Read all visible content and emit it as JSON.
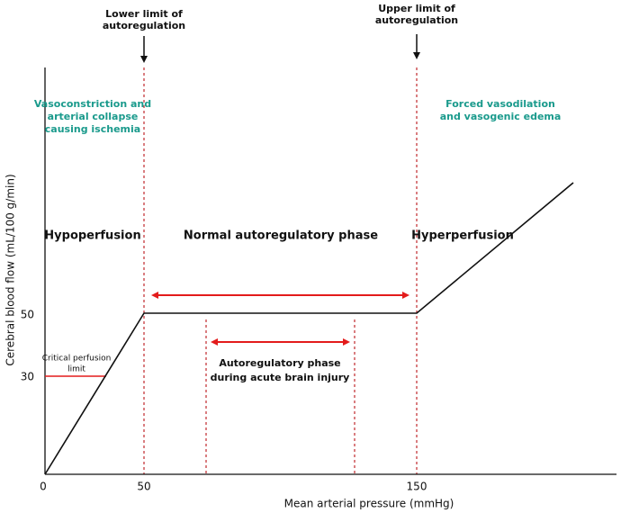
{
  "annotations": {
    "lower_limit": [
      "Lower limit of",
      "autoregulation"
    ],
    "upper_limit": [
      "Upper limit of",
      "autoregulation"
    ],
    "left_note": [
      "Vasoconstriction and",
      "arterial collapse",
      "causing ischemia"
    ],
    "right_note": [
      "Forced vasodilation",
      "and vasogenic edema"
    ],
    "phases": [
      "Hypoperfusion",
      "Normal autoregulatory phase",
      "Hyperperfusion"
    ],
    "injury_phase": [
      "Autoregulatory phase",
      "during acute brain injury"
    ],
    "critical": [
      "Critical perfusion",
      "limit"
    ]
  },
  "axes": {
    "x_label": "Mean arterial pressure (mmHg)",
    "y_label": "Cerebral blood flow (mL/100 g/min)",
    "x_ticks": [
      0,
      50,
      150
    ],
    "y_ticks": [
      50,
      30
    ]
  }
}
